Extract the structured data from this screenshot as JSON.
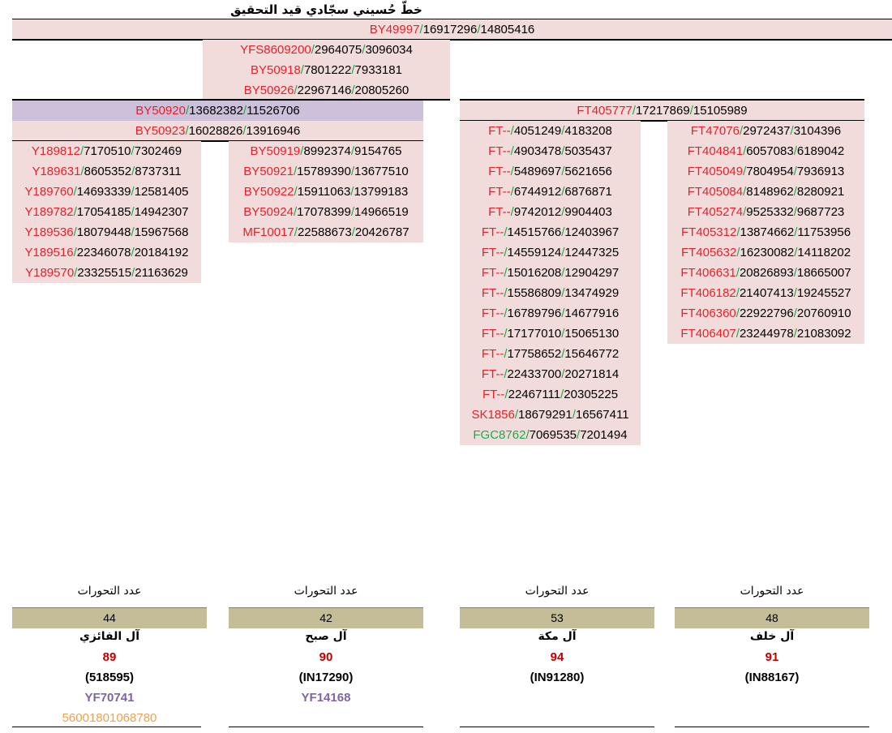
{
  "title": "خطّ حُسيني سجّادي قيد التحقيق",
  "top_chain": [
    {
      "snp": "BY49997",
      "p1": "16917296",
      "p2": "14805416"
    },
    {
      "snp": "YFS8609200",
      "p1": "2964075",
      "p2": "3096034"
    },
    {
      "snp": "BY50918",
      "p1": "7801222",
      "p2": "7933181"
    },
    {
      "snp": "BY50926",
      "p1": "22967146",
      "p2": "20805260"
    }
  ],
  "left_branch_header": [
    {
      "snp": "BY50920",
      "p1": "13682382",
      "p2": "11526706"
    },
    {
      "snp": "BY50923",
      "p1": "16028826",
      "p2": "13916946"
    }
  ],
  "right_branch_header": {
    "snp": "FT405777",
    "p1": "17217869",
    "p2": "15105989"
  },
  "col1": [
    {
      "snp": "Y189812",
      "p1": "7170510",
      "p2": "7302469"
    },
    {
      "snp": "Y189631",
      "p1": "8605352",
      "p2": "8737311"
    },
    {
      "snp": "Y189760",
      "p1": "14693339",
      "p2": "12581405"
    },
    {
      "snp": "Y189782",
      "p1": "17054185",
      "p2": "14942307"
    },
    {
      "snp": "Y189536",
      "p1": "18079448",
      "p2": "15967568"
    },
    {
      "snp": "Y189516",
      "p1": "22346078",
      "p2": "20184192"
    },
    {
      "snp": "Y189570",
      "p1": "23325515",
      "p2": "21163629"
    }
  ],
  "col2": [
    {
      "snp": "BY50919",
      "p1": "8992374",
      "p2": "9154765"
    },
    {
      "snp": "BY50921",
      "p1": "15789390",
      "p2": "13677510"
    },
    {
      "snp": "BY50922",
      "p1": "15911063",
      "p2": "13799183"
    },
    {
      "snp": "BY50924",
      "p1": "17078399",
      "p2": "14966519"
    },
    {
      "snp": "MF10017",
      "p1": "22588673",
      "p2": "20426787"
    }
  ],
  "col3": [
    {
      "snp": "FT--",
      "p1": "4051249",
      "p2": "4183208"
    },
    {
      "snp": "FT--",
      "p1": "4903478",
      "p2": "5035437"
    },
    {
      "snp": "FT--",
      "p1": "5489697",
      "p2": "5621656"
    },
    {
      "snp": "FT--",
      "p1": "6744912",
      "p2": "6876871"
    },
    {
      "snp": "FT--",
      "p1": "9742012",
      "p2": "9904403"
    },
    {
      "snp": "FT--",
      "p1": "14515766",
      "p2": "12403967"
    },
    {
      "snp": "FT--",
      "p1": "14559124",
      "p2": "12447325"
    },
    {
      "snp": "FT--",
      "p1": "15016208",
      "p2": "12904297"
    },
    {
      "snp": "FT--",
      "p1": "15586809",
      "p2": "13474929"
    },
    {
      "snp": "FT--",
      "p1": "16789796",
      "p2": "14677916"
    },
    {
      "snp": "FT--",
      "p1": "17177010",
      "p2": "15065130"
    },
    {
      "snp": "FT--",
      "p1": "17758652",
      "p2": "15646772"
    },
    {
      "snp": "FT--",
      "p1": "22433700",
      "p2": "20271814"
    },
    {
      "snp": "FT--",
      "p1": "22467111",
      "p2": "20305225"
    },
    {
      "snp": "SK1856",
      "p1": "18679291",
      "p2": "16567411"
    },
    {
      "snp": "FGC8762",
      "p1": "7069535",
      "p2": "7201494",
      "green": true
    }
  ],
  "col4": [
    {
      "snp": "FT47076",
      "p1": "2972437",
      "p2": "3104396"
    },
    {
      "snp": "FT404841",
      "p1": "6057083",
      "p2": "6189042"
    },
    {
      "snp": "FT405049",
      "p1": "7804954",
      "p2": "7936913"
    },
    {
      "snp": "FT405084",
      "p1": "8148962",
      "p2": "8280921"
    },
    {
      "snp": "FT405274",
      "p1": "9525332",
      "p2": "9687723"
    },
    {
      "snp": "FT405312",
      "p1": "13874662",
      "p2": "11753956"
    },
    {
      "snp": "FT405632",
      "p1": "16230082",
      "p2": "14118202"
    },
    {
      "snp": "FT406631",
      "p1": "20826893",
      "p2": "18665007"
    },
    {
      "snp": "FT406182",
      "p1": "21407413",
      "p2": "19245527"
    },
    {
      "snp": "FT406360",
      "p1": "22922796",
      "p2": "20760910"
    },
    {
      "snp": "FT406407",
      "p1": "23244978",
      "p2": "21083092"
    }
  ],
  "footer": [
    {
      "label": "عدد التحورات",
      "count": "44",
      "family": "آل الفائزي",
      "percent": "89",
      "kit": "(518595)",
      "terminal": "YF70741",
      "id": "56001801068780"
    },
    {
      "label": "عدد التحورات",
      "count": "42",
      "family": "آل صبح",
      "percent": "90",
      "kit": "(IN17290)",
      "terminal": "YF14168",
      "id": ""
    },
    {
      "label": "عدد التحورات",
      "count": "53",
      "family": "آل مكة",
      "percent": "94",
      "kit": "(IN91280)",
      "terminal": "",
      "id": ""
    },
    {
      "label": "عدد التحورات",
      "count": "48",
      "family": "آل خلف",
      "percent": "91",
      "kit": "(IN88167)",
      "terminal": "",
      "id": ""
    }
  ],
  "colors": {
    "snp": "#e8202a",
    "separator": "#21a84a",
    "pink": "#f2dcdb",
    "lavender": "#ccc0da",
    "count_box": "#c4bd97",
    "percent": "#c00000",
    "terminal": "#8064a2",
    "id": "#f0a050"
  }
}
